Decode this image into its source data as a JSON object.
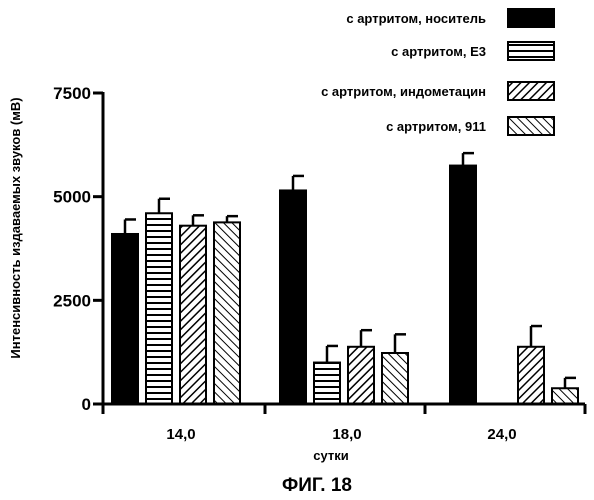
{
  "chart_data": {
    "type": "bar",
    "title": "",
    "caption": "ФИГ. 18",
    "xlabel": "сутки",
    "ylabel": "Интенсивность издаваемых звуков (мВ)",
    "ylim": [
      0,
      7500
    ],
    "yticks": [
      "0",
      "2500",
      "5000",
      "7500"
    ],
    "categories": [
      "14,0",
      "18,0",
      "24,0"
    ],
    "legend_position": "top-right",
    "series": [
      {
        "name": "с артритом, носитель",
        "pattern": "solid",
        "values": [
          4100,
          5150,
          5750
        ],
        "errors": [
          350,
          350,
          300
        ]
      },
      {
        "name": "с артритом, Е3",
        "pattern": "horizontal",
        "values": [
          4600,
          1000,
          0
        ],
        "errors": [
          350,
          400,
          0
        ]
      },
      {
        "name": "с артритом, индометацин",
        "pattern": "diagonal-down",
        "values": [
          4300,
          1380,
          1380
        ],
        "errors": [
          250,
          400,
          500
        ]
      },
      {
        "name": "с артритом, 911",
        "pattern": "diagonal-up",
        "values": [
          4380,
          1230,
          380
        ],
        "errors": [
          150,
          450,
          250
        ]
      }
    ]
  }
}
